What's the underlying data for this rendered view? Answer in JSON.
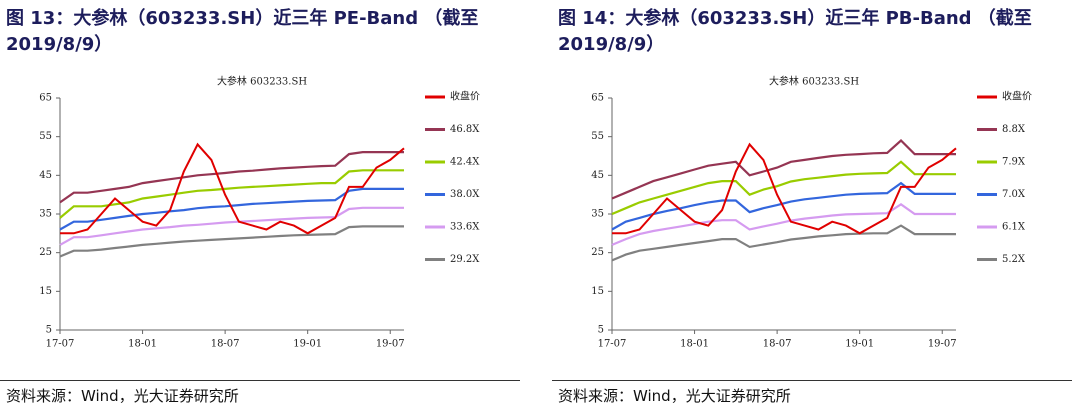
{
  "chart_data": [
    {
      "type": "line",
      "title": "图 13：大参林（603233.SH）近三年 PE-Band （截至 2019/8/9）",
      "subtitle": "大参林 603233.SH",
      "source": "资料来源：Wind，光大证券研究所",
      "categories": [
        "17-07",
        null,
        null,
        null,
        null,
        null,
        "18-01",
        null,
        null,
        null,
        null,
        null,
        "18-07",
        null,
        null,
        null,
        null,
        null,
        "19-01",
        null,
        null,
        null,
        null,
        null,
        "19-07",
        null
      ],
      "ylim": [
        5,
        65
      ],
      "yticks": [
        5,
        15,
        25,
        35,
        45,
        55,
        65
      ],
      "series": [
        {
          "name": "收盘价",
          "color": "#e00000",
          "values": [
            30,
            30,
            31,
            35,
            39,
            36,
            33,
            32,
            36,
            46,
            53,
            49,
            40,
            33,
            32,
            31,
            33,
            32,
            30,
            32,
            34,
            42,
            42,
            47,
            49,
            52
          ]
        },
        {
          "name": "46.8X",
          "color": "#953553",
          "values": [
            38,
            40.5,
            40.5,
            41,
            41.5,
            42,
            43,
            43.5,
            44,
            44.5,
            45,
            45.3,
            45.6,
            46,
            46.2,
            46.5,
            46.8,
            47,
            47.2,
            47.4,
            47.5,
            50.5,
            51,
            51,
            51,
            51
          ]
        },
        {
          "name": "42.4X",
          "color": "#99cc00",
          "values": [
            34,
            37,
            37,
            37,
            37.5,
            38,
            39,
            39.5,
            40,
            40.5,
            41,
            41.2,
            41.5,
            41.8,
            42,
            42.2,
            42.4,
            42.6,
            42.8,
            43,
            43,
            46,
            46.3,
            46.3,
            46.3,
            46.3
          ]
        },
        {
          "name": "38.0X",
          "color": "#3366dd",
          "values": [
            31,
            33,
            33,
            33.5,
            34,
            34.5,
            35,
            35.3,
            35.7,
            36,
            36.5,
            36.8,
            37,
            37.3,
            37.6,
            37.8,
            38,
            38.2,
            38.4,
            38.5,
            38.6,
            41,
            41.5,
            41.5,
            41.5,
            41.5
          ]
        },
        {
          "name": "33.6X",
          "color": "#d59bf0",
          "values": [
            27,
            29,
            29,
            29.5,
            30,
            30.5,
            31,
            31.3,
            31.6,
            32,
            32.2,
            32.5,
            32.8,
            33,
            33.2,
            33.4,
            33.6,
            33.8,
            34,
            34.1,
            34.2,
            36.3,
            36.6,
            36.6,
            36.6,
            36.6
          ]
        },
        {
          "name": "29.2X",
          "color": "#808080",
          "values": [
            24,
            25.5,
            25.5,
            25.8,
            26.2,
            26.6,
            27,
            27.3,
            27.6,
            27.9,
            28.1,
            28.3,
            28.5,
            28.7,
            28.9,
            29.1,
            29.3,
            29.5,
            29.6,
            29.7,
            29.8,
            31.6,
            31.8,
            31.8,
            31.8,
            31.8
          ]
        }
      ]
    },
    {
      "type": "line",
      "title": "图 14：大参林（603233.SH）近三年 PB-Band （截至 2019/8/9）",
      "subtitle": "大参林 603233.SH",
      "source": "资料来源：Wind，光大证券研究所",
      "categories": [
        "17-07",
        null,
        null,
        null,
        null,
        null,
        "18-01",
        null,
        null,
        null,
        null,
        null,
        "18-07",
        null,
        null,
        null,
        null,
        null,
        "19-01",
        null,
        null,
        null,
        null,
        null,
        "19-07",
        null
      ],
      "ylim": [
        5,
        65
      ],
      "yticks": [
        5,
        15,
        25,
        35,
        45,
        55,
        65
      ],
      "series": [
        {
          "name": "收盘价",
          "color": "#e00000",
          "values": [
            30,
            30,
            31,
            35,
            39,
            36,
            33,
            32,
            36,
            46,
            53,
            49,
            40,
            33,
            32,
            31,
            33,
            32,
            30,
            32,
            34,
            42,
            42,
            47,
            49,
            52
          ]
        },
        {
          "name": "8.8X",
          "color": "#953553",
          "values": [
            39,
            40.5,
            42,
            43.5,
            44.5,
            45.5,
            46.5,
            47.5,
            48,
            48.5,
            45,
            46,
            47,
            48.5,
            49,
            49.5,
            50,
            50.3,
            50.5,
            50.7,
            50.8,
            54,
            50.5,
            50.5,
            50.5,
            50.5
          ]
        },
        {
          "name": "7.9X",
          "color": "#99cc00",
          "values": [
            35,
            36.5,
            38,
            39,
            40,
            41,
            42,
            43,
            43.5,
            43.5,
            40,
            41.3,
            42.2,
            43.4,
            44,
            44.4,
            44.8,
            45.2,
            45.4,
            45.5,
            45.6,
            48.5,
            45.3,
            45.3,
            45.3,
            45.3
          ]
        },
        {
          "name": "7.0X",
          "color": "#3366dd",
          "values": [
            31,
            33,
            34,
            35,
            35.8,
            36.5,
            37.3,
            38,
            38.5,
            38.5,
            35.5,
            36.5,
            37.3,
            38.2,
            38.8,
            39.2,
            39.6,
            40,
            40.2,
            40.3,
            40.4,
            43,
            40.2,
            40.2,
            40.2,
            40.2
          ]
        },
        {
          "name": "6.1X",
          "color": "#d59bf0",
          "values": [
            27,
            28.5,
            29.8,
            30.6,
            31.2,
            31.8,
            32.4,
            33,
            33.4,
            33.4,
            31,
            31.8,
            32.5,
            33.3,
            33.8,
            34.2,
            34.6,
            34.9,
            35,
            35.1,
            35.2,
            37.5,
            35,
            35,
            35,
            35
          ]
        },
        {
          "name": "5.2X",
          "color": "#808080",
          "values": [
            23,
            24.5,
            25.5,
            26,
            26.5,
            27,
            27.5,
            28,
            28.5,
            28.5,
            26.5,
            27.1,
            27.7,
            28.4,
            28.8,
            29.2,
            29.5,
            29.8,
            29.9,
            30,
            30,
            32,
            29.8,
            29.8,
            29.8,
            29.8
          ]
        }
      ]
    }
  ]
}
